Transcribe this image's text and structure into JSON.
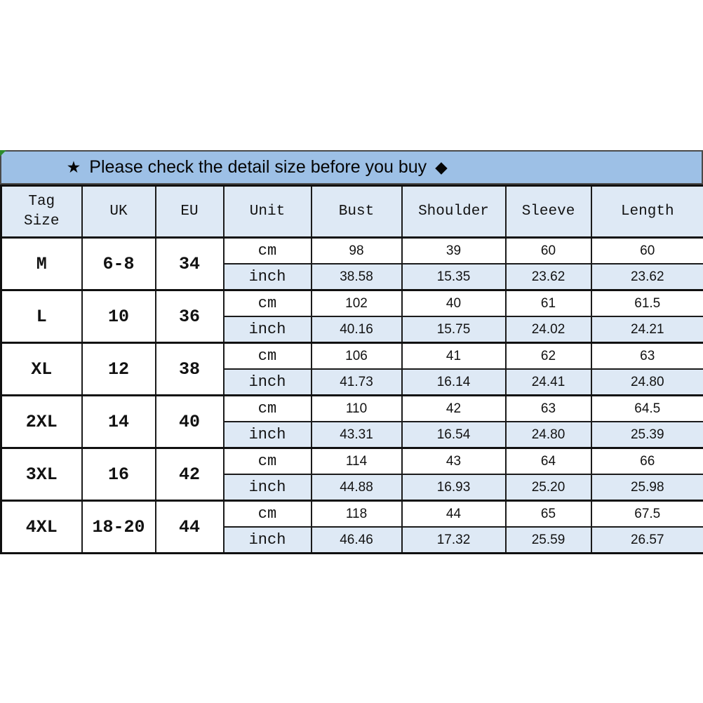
{
  "banner": {
    "star_icon": "★",
    "text": "Please check the detail size before you buy",
    "diamond_icon": "◆"
  },
  "colors": {
    "banner_bg": "#9dc0e6",
    "row_alt_bg": "#dee9f5",
    "border_dark": "#101010",
    "corner_marker_green": "#2e8b2e"
  },
  "chart_data": {
    "type": "table",
    "title": "Please check the detail size before you buy",
    "columns": [
      "Tag Size",
      "UK",
      "EU",
      "Unit",
      "Bust",
      "Shoulder",
      "Sleeve",
      "Length"
    ],
    "unit_labels": [
      "cm",
      "inch"
    ],
    "size_groups": [
      {
        "size": "M",
        "uk": "6-8",
        "eu": "34",
        "cm": [
          "98",
          "39",
          "60",
          "60"
        ],
        "inch": [
          "38.58",
          "15.35",
          "23.62",
          "23.62"
        ]
      },
      {
        "size": "L",
        "uk": "10",
        "eu": "36",
        "cm": [
          "102",
          "40",
          "61",
          "61.5"
        ],
        "inch": [
          "40.16",
          "15.75",
          "24.02",
          "24.21"
        ]
      },
      {
        "size": "XL",
        "uk": "12",
        "eu": "38",
        "cm": [
          "106",
          "41",
          "62",
          "63"
        ],
        "inch": [
          "41.73",
          "16.14",
          "24.41",
          "24.80"
        ]
      },
      {
        "size": "2XL",
        "uk": "14",
        "eu": "40",
        "cm": [
          "110",
          "42",
          "63",
          "64.5"
        ],
        "inch": [
          "43.31",
          "16.54",
          "24.80",
          "25.39"
        ]
      },
      {
        "size": "3XL",
        "uk": "16",
        "eu": "42",
        "cm": [
          "114",
          "43",
          "64",
          "66"
        ],
        "inch": [
          "44.88",
          "16.93",
          "25.20",
          "25.98"
        ]
      },
      {
        "size": "4XL",
        "uk": "18-20",
        "eu": "44",
        "cm": [
          "118",
          "44",
          "65",
          "67.5"
        ],
        "inch": [
          "46.46",
          "17.32",
          "25.59",
          "26.57"
        ]
      }
    ]
  }
}
